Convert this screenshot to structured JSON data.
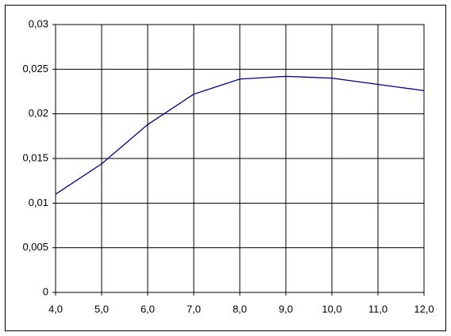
{
  "chart_data": {
    "type": "line",
    "x": [
      4,
      5,
      6,
      7,
      8,
      9,
      10,
      11,
      12
    ],
    "series": [
      {
        "color": "#000080",
        "values": [
          0.011,
          0.0144,
          0.0188,
          0.0222,
          0.0239,
          0.0242,
          0.024,
          0.0233,
          0.0226
        ]
      }
    ],
    "xlim": [
      4,
      12
    ],
    "xticks": [
      {
        "value": 4,
        "label": "4,0"
      },
      {
        "value": 5,
        "label": "5,0"
      },
      {
        "value": 6,
        "label": "6,0"
      },
      {
        "value": 7,
        "label": "7,0"
      },
      {
        "value": 8,
        "label": "8,0"
      },
      {
        "value": 9,
        "label": "9,0"
      },
      {
        "value": 10,
        "label": "10,0"
      },
      {
        "value": 11,
        "label": "11,0"
      },
      {
        "value": 12,
        "label": "12,0"
      }
    ],
    "ylim": [
      0,
      0.03
    ],
    "yticks": [
      0,
      {
        "value": 0.005,
        "label": "0,005"
      },
      {
        "value": 0.01,
        "label": "0,01"
      },
      {
        "value": 0.015,
        "label": "0,015"
      },
      {
        "value": 0.02,
        "label": "0,02"
      },
      {
        "value": 0.025,
        "label": "0,025"
      },
      {
        "value": 0.03,
        "label": "0,03"
      }
    ],
    "grid": true
  }
}
